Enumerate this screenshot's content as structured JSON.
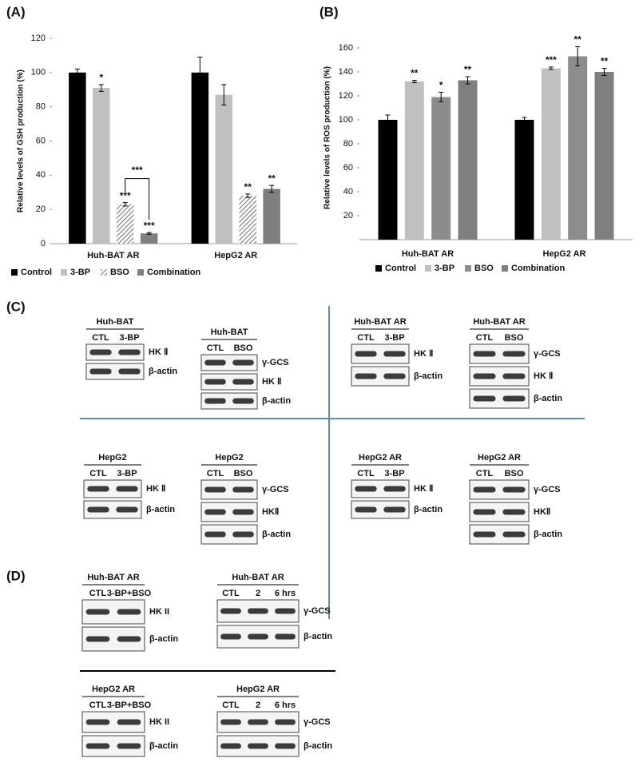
{
  "chart_data": [
    {
      "type": "bar",
      "panel": "(A)",
      "ylabel": "Relative levels of GSH production (%)",
      "categories": [
        "Huh-BAT  AR",
        "HepG2  AR"
      ],
      "ylim": [
        0,
        120
      ],
      "yticks": [
        0,
        20,
        40,
        60,
        80,
        100,
        120
      ],
      "series": [
        {
          "name": "Control",
          "color": "#000000",
          "values": [
            100,
            100
          ],
          "errors": [
            2,
            9
          ],
          "sig": [
            null,
            null
          ]
        },
        {
          "name": "3-BP",
          "color": "#c0c0c0",
          "values": [
            91,
            87
          ],
          "errors": [
            2,
            6
          ],
          "sig": [
            "*",
            null
          ]
        },
        {
          "name": "BSO",
          "color": "#9a9a9a",
          "hatch": true,
          "values": [
            23,
            28
          ],
          "errors": [
            1,
            1
          ],
          "sig": [
            "***",
            "**"
          ]
        },
        {
          "name": "Combination",
          "color": "#7f7f7f",
          "values": [
            6,
            32
          ],
          "errors": [
            0.5,
            2
          ],
          "sig": [
            "***",
            "**"
          ]
        }
      ],
      "bracket": {
        "label": "***"
      }
    },
    {
      "type": "bar",
      "panel": "(B)",
      "ylabel": "Relative levels of ROS production (%)",
      "categories": [
        "Huh-BAT AR",
        "HepG2 AR"
      ],
      "ylim": [
        0,
        170
      ],
      "yticks": [
        20,
        40,
        60,
        80,
        100,
        120,
        140,
        160
      ],
      "series": [
        {
          "name": "Control",
          "color": "#000000",
          "values": [
            100,
            100
          ],
          "errors": [
            4,
            2
          ],
          "sig": [
            null,
            null
          ]
        },
        {
          "name": "3-BP",
          "color": "#c0c0c0",
          "values": [
            132,
            143
          ],
          "errors": [
            1,
            1
          ],
          "sig": [
            "**",
            "***"
          ]
        },
        {
          "name": "BSO",
          "color": "#8c8c8c",
          "values": [
            119,
            153
          ],
          "errors": [
            4,
            8
          ],
          "sig": [
            "*",
            "**"
          ]
        },
        {
          "name": "Combination",
          "color": "#7f7f7f",
          "values": [
            133,
            140
          ],
          "errors": [
            3,
            3
          ],
          "sig": [
            "**",
            "**"
          ]
        }
      ]
    }
  ],
  "blots": [
    {
      "label": "(C)",
      "panels": [
        {
          "title": "Huh-BAT",
          "lanes": [
            "CTL",
            "3-BP"
          ],
          "rows": [
            "HK Ⅱ",
            "β-actin"
          ]
        },
        {
          "title": "Huh-BAT",
          "lanes": [
            "CTL",
            "BSO"
          ],
          "rows": [
            "γ-GCS",
            "HK Ⅱ",
            "β-actin"
          ]
        },
        {
          "title": "Huh-BAT AR",
          "lanes": [
            "CTL",
            "3-BP"
          ],
          "rows": [
            "HK Ⅱ",
            "β-actin"
          ]
        },
        {
          "title": "Huh-BAT AR",
          "lanes": [
            "CTL",
            "BSO"
          ],
          "rows": [
            "γ-GCS",
            "HK Ⅱ",
            "β-actin"
          ]
        },
        {
          "title": "HepG2",
          "lanes": [
            "CTL",
            "3-BP"
          ],
          "rows": [
            "HK Ⅱ",
            "β-actin"
          ]
        },
        {
          "title": "HepG2",
          "lanes": [
            "CTL",
            "BSO"
          ],
          "rows": [
            "γ-GCS",
            "HKⅡ",
            "β-actin"
          ]
        },
        {
          "title": "HepG2 AR",
          "lanes": [
            "CTL",
            "3-BP"
          ],
          "rows": [
            "HK Ⅱ",
            "β-actin"
          ]
        },
        {
          "title": "HepG2 AR",
          "lanes": [
            "CTL",
            "BSO"
          ],
          "rows": [
            "γ-GCS",
            "HKⅡ",
            "β-actin"
          ]
        }
      ]
    },
    {
      "label": "(D)",
      "panels": [
        {
          "title": "Huh-BAT AR",
          "lanes": [
            "CTL",
            "3-BP+BSO"
          ],
          "rows": [
            "HK II",
            "β-actin"
          ]
        },
        {
          "title": "Huh-BAT AR",
          "lanes": [
            "CTL",
            "2",
            "6 hrs"
          ],
          "rows": [
            "γ-GCS",
            "β-actin"
          ]
        },
        {
          "title": "HepG2  AR",
          "lanes": [
            "CTL",
            "3-BP+BSO"
          ],
          "rows": [
            "HK II",
            "β-actin"
          ]
        },
        {
          "title": "HepG2  AR",
          "lanes": [
            "CTL",
            "2",
            "6 hrs"
          ],
          "rows": [
            "γ-GCS",
            "β-actin"
          ]
        }
      ]
    }
  ]
}
